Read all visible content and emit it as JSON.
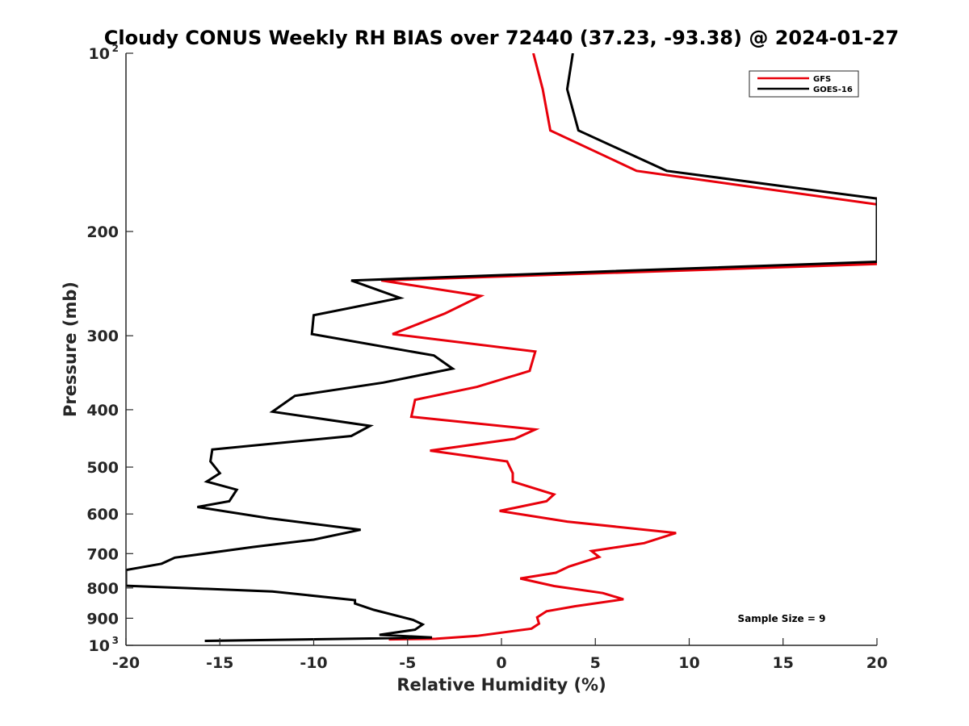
{
  "chart_data": {
    "type": "line",
    "title": "Cloudy CONUS Weekly RH BIAS over 72440 (37.23, -93.38) @ 2024-01-27",
    "xlabel": "Relative Humidity (%)",
    "ylabel": "Pressure (mb)",
    "xlim": [
      -20,
      20
    ],
    "ylim": [
      100,
      1000
    ],
    "yscale": "log",
    "y_reversed": true,
    "grid": false,
    "legend_position": "top-right",
    "x_ticks": [
      "-20",
      "-15",
      "-10",
      "-5",
      "0",
      "5",
      "10",
      "15",
      "20"
    ],
    "y_ticks": [
      {
        "value": 100,
        "base": "10",
        "exp": "2"
      },
      {
        "value": 200,
        "label": "200"
      },
      {
        "value": 300,
        "label": "300"
      },
      {
        "value": 400,
        "label": "400"
      },
      {
        "value": 500,
        "label": "500"
      },
      {
        "value": 600,
        "label": "600"
      },
      {
        "value": 700,
        "label": "700"
      },
      {
        "value": 800,
        "label": "800"
      },
      {
        "value": 900,
        "label": "900"
      },
      {
        "value": 1000,
        "base": "10",
        "exp": "3"
      }
    ],
    "annotation": "Sample Size = 9",
    "series": [
      {
        "name": "GFS",
        "color": "#e8000b",
        "points": [
          [
            1.7,
            100
          ],
          [
            2.2,
            115
          ],
          [
            2.6,
            135
          ],
          [
            7.2,
            158
          ],
          [
            20.0,
            180
          ],
          [
            20.0,
            175
          ],
          [
            20.0,
            227
          ],
          [
            -6.4,
            242
          ],
          [
            -1.1,
            257
          ],
          [
            -3.0,
            275
          ],
          [
            -5.8,
            298
          ],
          [
            1.8,
            319
          ],
          [
            1.5,
            344
          ],
          [
            -1.3,
            366
          ],
          [
            -4.6,
            385
          ],
          [
            -4.8,
            411
          ],
          [
            1.8,
            432
          ],
          [
            0.7,
            448
          ],
          [
            -3.8,
            469
          ],
          [
            0.3,
            489
          ],
          [
            0.6,
            512
          ],
          [
            0.6,
            529
          ],
          [
            2.8,
            556
          ],
          [
            2.4,
            571
          ],
          [
            -0.1,
            593
          ],
          [
            3.5,
            618
          ],
          [
            9.3,
            646
          ],
          [
            7.6,
            672
          ],
          [
            4.8,
            693
          ],
          [
            5.2,
            709
          ],
          [
            3.6,
            736
          ],
          [
            2.9,
            754
          ],
          [
            1.0,
            771
          ],
          [
            2.8,
            794
          ],
          [
            5.4,
            816
          ],
          [
            6.5,
            836
          ],
          [
            3.9,
            859
          ],
          [
            2.4,
            876
          ],
          [
            1.9,
            897
          ],
          [
            2.0,
            919
          ],
          [
            1.6,
            937
          ],
          [
            -1.3,
            964
          ],
          [
            -3.5,
            975
          ],
          [
            -6.0,
            977
          ]
        ]
      },
      {
        "name": "GOES-16",
        "color": "#000000",
        "points": [
          [
            3.8,
            100
          ],
          [
            3.5,
            115
          ],
          [
            4.1,
            135
          ],
          [
            8.8,
            158
          ],
          [
            20.0,
            176
          ],
          [
            20.0,
            225
          ],
          [
            -8.0,
            242
          ],
          [
            -5.4,
            259
          ],
          [
            -10.0,
            277
          ],
          [
            -10.1,
            298
          ],
          [
            -3.6,
            324
          ],
          [
            -2.6,
            341
          ],
          [
            -6.3,
            360
          ],
          [
            -11.0,
            379
          ],
          [
            -12.2,
            403
          ],
          [
            -7.0,
            426
          ],
          [
            -8.0,
            443
          ],
          [
            -15.4,
            467
          ],
          [
            -15.5,
            489
          ],
          [
            -15.0,
            512
          ],
          [
            -15.7,
            529
          ],
          [
            -14.1,
            546
          ],
          [
            -14.5,
            571
          ],
          [
            -16.2,
            584
          ],
          [
            -12.4,
            610
          ],
          [
            -7.5,
            638
          ],
          [
            -10.0,
            663
          ],
          [
            -13.2,
            682
          ],
          [
            -17.4,
            711
          ],
          [
            -18.1,
            728
          ],
          [
            -20.0,
            746
          ],
          [
            -20.0,
            793
          ],
          [
            -12.2,
            811
          ],
          [
            -7.8,
            839
          ],
          [
            -7.8,
            850
          ],
          [
            -6.8,
            871
          ],
          [
            -4.7,
            906
          ],
          [
            -4.2,
            922
          ],
          [
            -4.6,
            941
          ],
          [
            -6.5,
            960
          ],
          [
            -3.7,
            970
          ],
          [
            -15.8,
            983
          ]
        ]
      }
    ]
  }
}
